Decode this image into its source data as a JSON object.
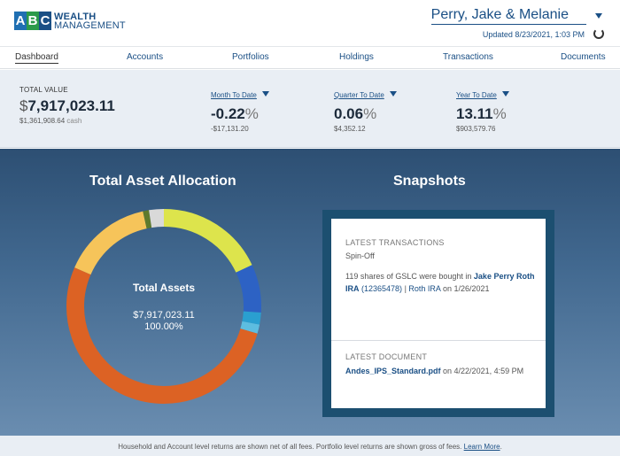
{
  "header": {
    "logo": {
      "letters": [
        "A",
        "B",
        "C"
      ],
      "line1": "WEALTH",
      "line2": "MANAGEMENT"
    },
    "client_name": "Perry, Jake & Melanie",
    "updated": "Updated 8/23/2021, 1:03 PM"
  },
  "nav": {
    "items": [
      {
        "label": "Dashboard",
        "active": true
      },
      {
        "label": "Accounts"
      },
      {
        "label": "Portfolios"
      },
      {
        "label": "Holdings"
      },
      {
        "label": "Transactions"
      },
      {
        "label": "Documents"
      }
    ]
  },
  "summary": {
    "total_value": {
      "label": "TOTAL VALUE",
      "currency": "$",
      "value": "7,917,023.11",
      "cash_amount": "$1,361,908.64",
      "cash_label": "cash"
    },
    "month_to_date": {
      "label": "Month To Date",
      "value": "-0.22",
      "pct": "%",
      "sub": "-$17,131.20"
    },
    "quarter_to_date": {
      "label": "Quarter To Date",
      "value": "0.06",
      "pct": "%",
      "sub": "$4,352.12"
    },
    "year_to_date": {
      "label": "Year To Date",
      "value": "13.11",
      "pct": "%",
      "sub": "$903,579.76"
    }
  },
  "allocation": {
    "title": "Total Asset Allocation",
    "center_title": "Total Assets",
    "center_value": "$7,917,023.11",
    "center_pct": "100.00%"
  },
  "chart_data": {
    "type": "pie",
    "donut": true,
    "title": "",
    "slices": [
      {
        "value": 18,
        "color": "#dde44c"
      },
      {
        "value": 8,
        "color": "#2d62c4"
      },
      {
        "value": 2,
        "color": "#2a9fd0"
      },
      {
        "value": 1.5,
        "color": "#5dbde0"
      },
      {
        "value": 52,
        "color": "#dc6224"
      },
      {
        "value": 15,
        "color": "#f6c45a"
      },
      {
        "value": 1,
        "color": "#5f7a2c"
      },
      {
        "value": 2.5,
        "color": "#d9d9d9"
      }
    ]
  },
  "snapshots": {
    "title": "Snapshots",
    "latest_transactions": {
      "heading": "LATEST TRANSACTIONS",
      "type": "Spin-Off",
      "text_prefix": "119 shares of GSLC were bought in ",
      "account_name": "Jake Perry Roth IRA",
      "account_number": "(12365478)",
      "separator": " | ",
      "account_type": "Roth IRA",
      "date_text": " on 1/26/2021"
    },
    "latest_document": {
      "heading": "LATEST DOCUMENT",
      "file": "Andes_IPS_Standard.pdf",
      "date_text": " on 4/22/2021, 4:59 PM"
    }
  },
  "footer": {
    "note": "Household and Account level returns are shown net of all fees. Portfolio level returns are shown gross of fees.",
    "link": "Learn More",
    "end": "."
  }
}
